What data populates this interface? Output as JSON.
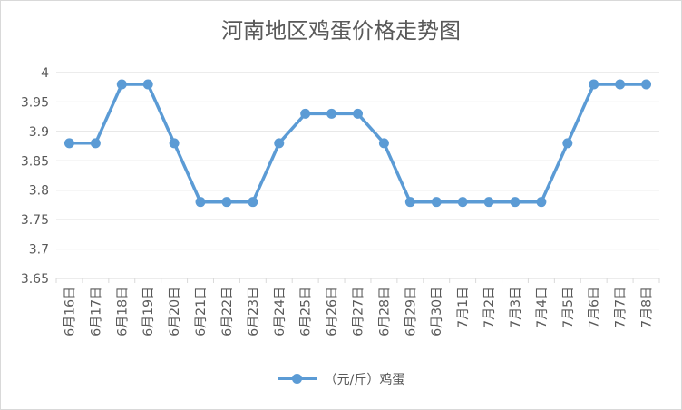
{
  "chart_data": {
    "type": "line",
    "title": "河南地区鸡蛋价格走势图",
    "categories": [
      "6月16日",
      "6月17日",
      "6月18日",
      "6月19日",
      "6月20日",
      "6月21日",
      "6月22日",
      "6月23日",
      "6月24日",
      "6月25日",
      "6月26日",
      "6月27日",
      "6月28日",
      "6月29日",
      "6月30日",
      "7月1日",
      "7月2日",
      "7月3日",
      "7月4日",
      "7月5日",
      "7月6日",
      "7月7日",
      "7月8日"
    ],
    "series": [
      {
        "name": "（元/斤）鸡蛋",
        "color": "#5b9bd5",
        "values": [
          3.88,
          3.88,
          3.98,
          3.98,
          3.88,
          3.78,
          3.78,
          3.78,
          3.88,
          3.93,
          3.93,
          3.93,
          3.88,
          3.78,
          3.78,
          3.78,
          3.78,
          3.78,
          3.78,
          3.88,
          3.98,
          3.98,
          3.98
        ]
      }
    ],
    "ylim": [
      3.65,
      4
    ],
    "yticks": [
      "3.65",
      "3.7",
      "3.75",
      "3.8",
      "3.85",
      "3.9",
      "3.95",
      "4"
    ],
    "grid": true,
    "legend": "bottom"
  }
}
